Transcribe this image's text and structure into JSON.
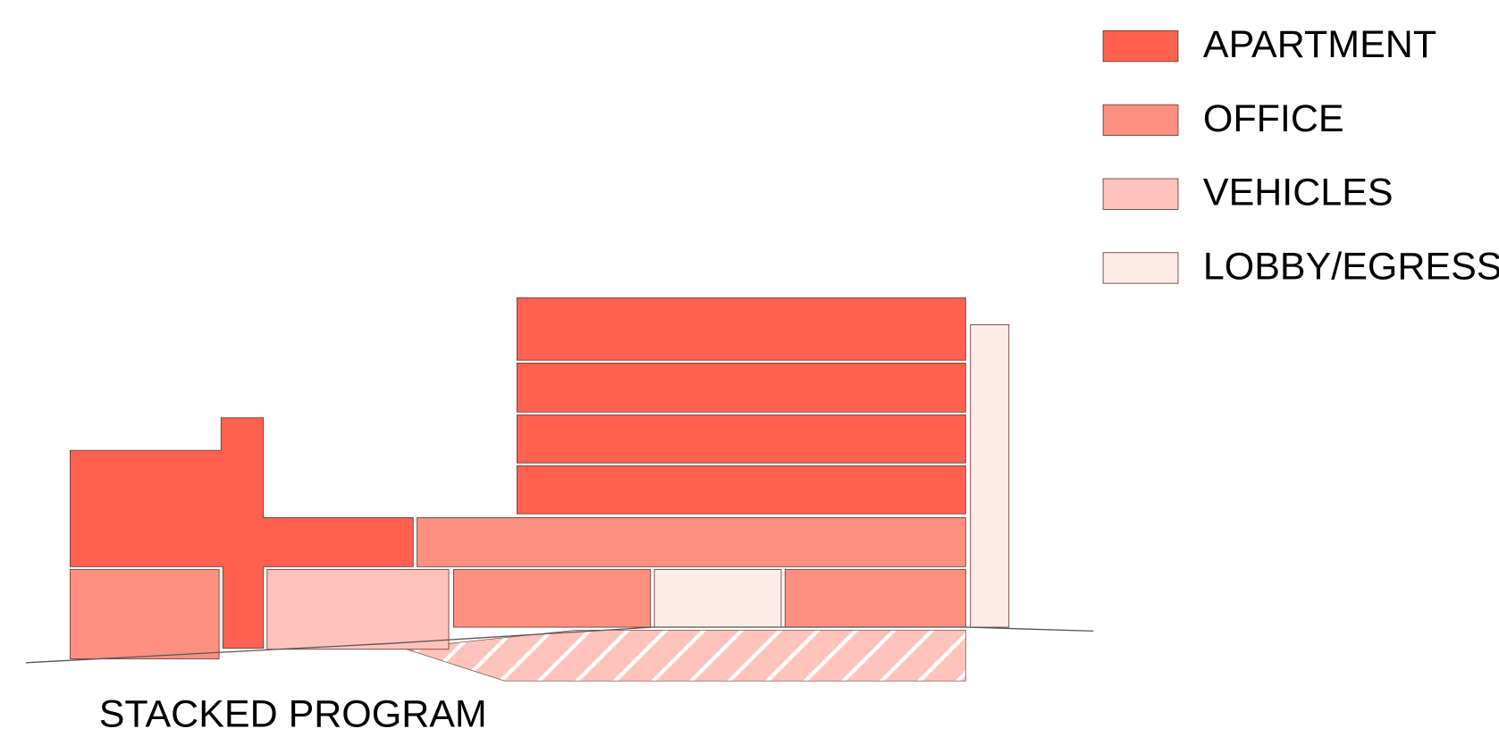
{
  "legend": {
    "items": [
      {
        "label": "APARTMENT"
      },
      {
        "label": "OFFICE"
      },
      {
        "label": "VEHICLES"
      },
      {
        "label": "LOBBY/EGRESS"
      }
    ]
  },
  "caption": "STACKED PROGRAM"
}
